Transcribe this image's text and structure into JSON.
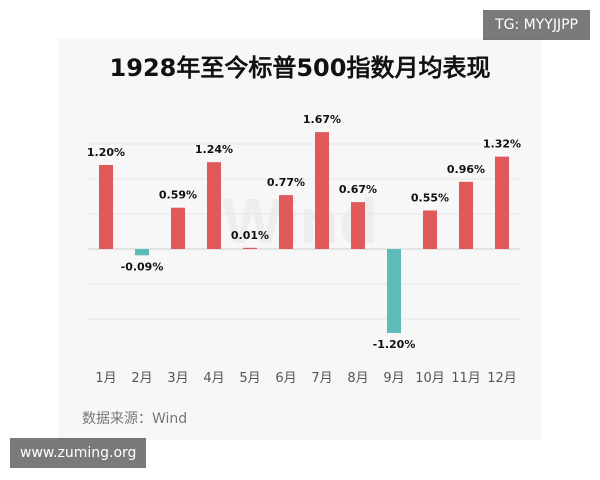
{
  "chart_data": {
    "type": "bar",
    "title": "1928年至今标普500指数月均表现",
    "categories": [
      "1月",
      "2月",
      "3月",
      "4月",
      "5月",
      "6月",
      "7月",
      "8月",
      "9月",
      "10月",
      "11月",
      "12月"
    ],
    "values": [
      1.2,
      -0.09,
      0.59,
      1.24,
      0.01,
      0.77,
      1.67,
      0.67,
      -1.2,
      0.55,
      0.96,
      1.32
    ],
    "data_labels": [
      "1.20%",
      "-0.09%",
      "0.59%",
      "1.24%",
      "0.01%",
      "0.77%",
      "1.67%",
      "0.67%",
      "-1.20%",
      "0.55%",
      "0.96%",
      "1.32%"
    ],
    "ylim": [
      -1.6,
      2.0
    ],
    "grid": true,
    "colors": {
      "positive": "#e05a5b",
      "negative": "#5bbcb8"
    }
  },
  "source_label": "数据来源：Wind",
  "watermark_text": "Wind",
  "tg_badge": "TG: MYYJJPP",
  "site_badge": "www.zuming.org"
}
